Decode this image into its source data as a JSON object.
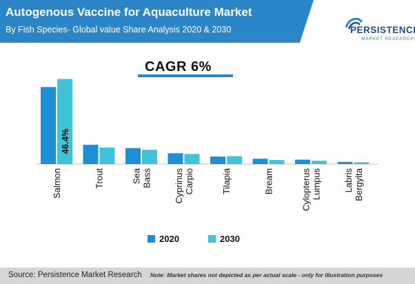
{
  "header": {
    "title": "Autogenous Vaccine for Aquaculture Market",
    "subtitle": "By Fish Species- Global value Share Analysis 2020 & 2030"
  },
  "logo": {
    "name": "PERSISTENCE",
    "sub": "MARKET RESEARCH"
  },
  "cagr_label": "CAGR 6%",
  "footer": {
    "source": "Source: Persistence Market Research",
    "note": "Note: Market shares not depicted as per actual scale - only for illustration purposes"
  },
  "colors": {
    "series_2020": "#1e8fd6",
    "series_2030": "#40c2d8",
    "header_band": "#2a86c8"
  },
  "chart_data": {
    "type": "bar",
    "categories": [
      "Salmon",
      "Trout",
      "Sea Bass",
      "Cyprinus Carpio",
      "Tilapia",
      "Bream",
      "Cylopterus Lumpus",
      "Labris Bergylta"
    ],
    "series": [
      {
        "name": "2020",
        "values": [
          42.0,
          10.5,
          8.7,
          5.9,
          4.1,
          2.9,
          2.4,
          1.2
        ]
      },
      {
        "name": "2030",
        "values": [
          46.4,
          9.0,
          7.8,
          5.5,
          4.3,
          2.2,
          1.8,
          1.0
        ]
      }
    ],
    "data_labels": [
      {
        "series": "2030",
        "category": "Salmon",
        "text": "46.4%"
      }
    ],
    "ylim": [
      0,
      50
    ],
    "grid": false,
    "legend_position": "bottom"
  }
}
